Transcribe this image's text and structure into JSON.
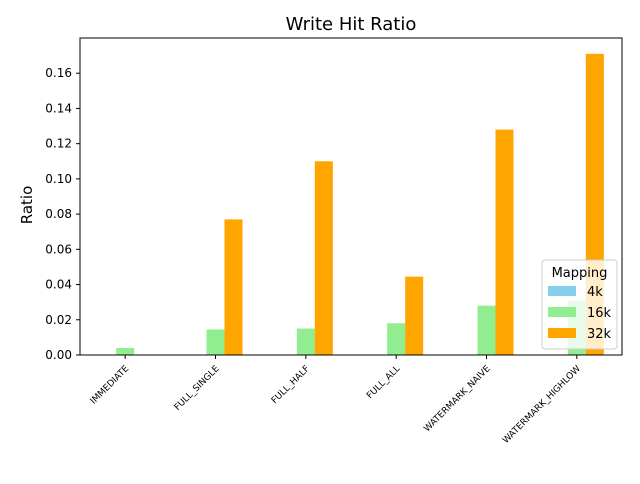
{
  "chart_data": {
    "type": "bar",
    "title": "Write Hit Ratio",
    "xlabel": "",
    "ylabel": "Ratio",
    "categories": [
      "IMMEDIATE",
      "FULL_SINGLE",
      "FULL_HALF",
      "FULL_ALL",
      "WATERMARK_NAIVE",
      "WATERMARK_HIGHLOW"
    ],
    "series": [
      {
        "name": "4k",
        "color": "#87ceeb",
        "values": [
          0,
          0,
          0,
          0,
          0,
          0
        ]
      },
      {
        "name": "16k",
        "color": "#90ee90",
        "values": [
          0.004,
          0.0145,
          0.015,
          0.018,
          0.028,
          0.031
        ]
      },
      {
        "name": "32k",
        "color": "#ffa500",
        "values": [
          0,
          0.077,
          0.11,
          0.0445,
          0.128,
          0.171
        ]
      }
    ],
    "ylim": [
      0,
      0.18
    ],
    "yticks": [
      "0.00",
      "0.02",
      "0.04",
      "0.06",
      "0.08",
      "0.10",
      "0.12",
      "0.14",
      "0.16"
    ],
    "legend": {
      "title": "Mapping",
      "placement": "lower-right"
    },
    "grid": false
  }
}
